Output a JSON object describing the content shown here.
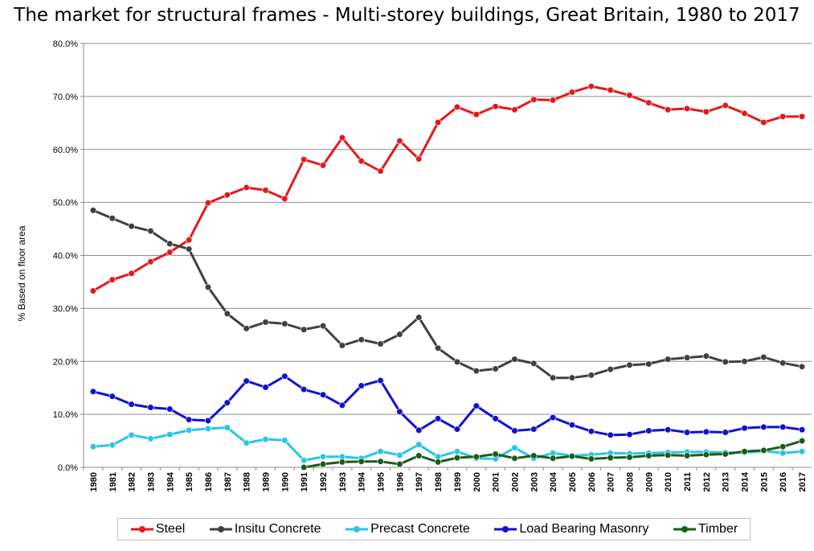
{
  "chart_data": {
    "type": "line",
    "title": "The market for structural frames - Multi-storey buildings, Great Britain, 1980 to 2017",
    "ylabel": "% Based on floor area",
    "xlabel": "",
    "ylim": [
      0,
      80
    ],
    "yticks": [
      "0.0%",
      "10.0%",
      "20.0%",
      "30.0%",
      "40.0%",
      "50.0%",
      "60.0%",
      "70.0%",
      "80.0%"
    ],
    "grid": true,
    "legend_position": "bottom",
    "x": [
      "1980",
      "1981",
      "1982",
      "1983",
      "1984",
      "1985",
      "1986",
      "1987",
      "1988",
      "1989",
      "1990",
      "1991",
      "1992",
      "1993",
      "1994",
      "1995",
      "1996",
      "1997",
      "1998",
      "1999",
      "2000",
      "2001",
      "2002",
      "2003",
      "2004",
      "2005",
      "2006",
      "2007",
      "2008",
      "2009",
      "2010",
      "2011",
      "2012",
      "2013",
      "2014",
      "2015",
      "2016",
      "2017"
    ],
    "series": [
      {
        "name": "Steel",
        "color": "#e31a1c",
        "values": [
          33.3,
          35.4,
          36.6,
          38.8,
          40.6,
          42.9,
          49.9,
          51.4,
          52.8,
          52.3,
          50.7,
          58.1,
          57.0,
          62.2,
          57.8,
          55.9,
          61.6,
          58.2,
          65.1,
          68.0,
          66.6,
          68.1,
          67.5,
          69.4,
          69.3,
          70.8,
          71.9,
          71.2,
          70.2,
          68.8,
          67.5,
          67.7,
          67.1,
          68.3,
          66.8,
          65.1,
          66.2,
          66.2
        ]
      },
      {
        "name": "Insitu Concrete",
        "color": "#404040",
        "values": [
          48.5,
          47.0,
          45.5,
          44.6,
          42.2,
          41.2,
          34.0,
          29.0,
          26.2,
          27.4,
          27.1,
          26.0,
          26.7,
          23.0,
          24.1,
          23.3,
          25.1,
          28.3,
          22.5,
          19.9,
          18.2,
          18.6,
          20.4,
          19.6,
          16.9,
          16.9,
          17.4,
          18.5,
          19.3,
          19.5,
          20.4,
          20.7,
          21.0,
          19.9,
          20.0,
          20.8,
          19.7,
          19.0
        ]
      },
      {
        "name": "Precast Concrete",
        "color": "#29c5e6",
        "values": [
          3.9,
          4.2,
          6.1,
          5.4,
          6.2,
          7.0,
          7.3,
          7.5,
          4.6,
          5.3,
          5.1,
          1.3,
          2.0,
          2.0,
          1.7,
          3.0,
          2.3,
          4.3,
          2.0,
          3.0,
          1.7,
          1.6,
          3.7,
          1.7,
          2.7,
          2.2,
          2.4,
          2.7,
          2.6,
          2.7,
          2.8,
          2.9,
          2.9,
          2.8,
          2.8,
          3.1,
          2.7,
          3.0
        ]
      },
      {
        "name": "Load Bearing Masonry",
        "color": "#1010d0",
        "values": [
          14.3,
          13.4,
          11.9,
          11.3,
          11.0,
          9.0,
          8.8,
          12.2,
          16.3,
          15.1,
          17.2,
          14.7,
          13.7,
          11.7,
          15.4,
          16.4,
          10.5,
          7.0,
          9.2,
          7.2,
          11.6,
          9.2,
          6.9,
          7.2,
          9.4,
          8.0,
          6.8,
          6.1,
          6.2,
          6.9,
          7.1,
          6.6,
          6.7,
          6.6,
          7.4,
          7.6,
          7.6,
          7.1
        ]
      },
      {
        "name": "Timber",
        "color": "#1a5c1a",
        "values": [
          null,
          null,
          null,
          null,
          null,
          null,
          null,
          null,
          null,
          null,
          null,
          0.0,
          0.6,
          1.0,
          1.1,
          1.1,
          0.6,
          2.2,
          1.0,
          1.8,
          2.0,
          2.5,
          1.7,
          2.2,
          1.7,
          2.1,
          1.6,
          1.8,
          1.9,
          2.2,
          2.3,
          2.2,
          2.4,
          2.5,
          3.0,
          3.2,
          3.9,
          5.0
        ]
      }
    ]
  }
}
